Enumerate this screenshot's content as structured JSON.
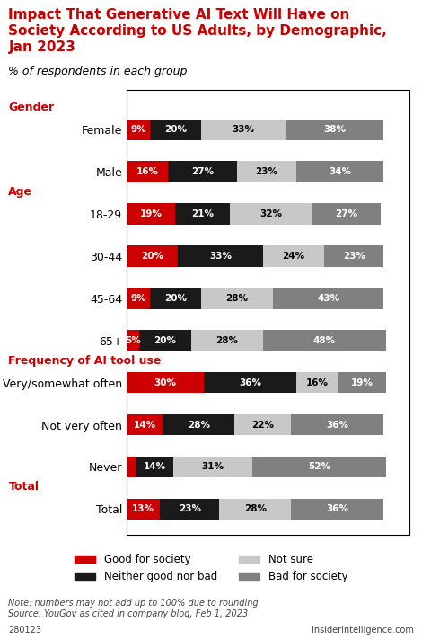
{
  "chart_data": {
    "type": "bar",
    "title": "Impact That Generative AI Text Will Have on\nSociety According to US Adults, by Demographic,\nJan 2023",
    "subtitle": "% of respondents in each group",
    "note": "Note: numbers may not add up to 100% due to rounding\nSource: YouGov as cited in company blog, Feb 1, 2023",
    "footer": [
      "280123",
      "InsiderIntelligence.com"
    ],
    "orientation": "horizontal",
    "stacked": true,
    "data_labels": true,
    "tick_labels": "y",
    "grid": false,
    "legend": "lower center",
    "xlim": [
      0,
      110
    ],
    "categories": [
      "Female",
      "Male",
      "18-29",
      "30-44",
      "45-64",
      "65+",
      "Very/somewhat often",
      "Not very often",
      "Never",
      "Total"
    ],
    "annotations": [
      {
        "text": "Gender",
        "category": "Female"
      },
      {
        "text": "Age",
        "category": "18-29"
      },
      {
        "text": "Frequency of AI tool use",
        "category": "Very/somewhat often"
      },
      {
        "text": "Total",
        "category": "Total"
      }
    ],
    "series": [
      {
        "name": "Good for society",
        "color": "#cc0000",
        "values": [
          9,
          16,
          19,
          20,
          9,
          5,
          30,
          14,
          4,
          13
        ],
        "value_labels": [
          "9%",
          "16%",
          "19%",
          "20%",
          "9%",
          "5%",
          "30%",
          "14%",
          null,
          "13%"
        ]
      },
      {
        "name": "Neither good nor bad",
        "color": "#1a1a1a",
        "values": [
          20,
          27,
          21,
          33,
          20,
          20,
          36,
          28,
          14,
          23
        ],
        "value_labels": [
          "20%",
          "27%",
          "21%",
          "33%",
          "20%",
          "20%",
          "36%",
          "28%",
          "14%",
          "23%"
        ]
      },
      {
        "name": "Not sure",
        "color": "#c8c8c8",
        "values": [
          33,
          23,
          32,
          24,
          28,
          28,
          16,
          22,
          31,
          28
        ],
        "value_labels": [
          "33%",
          "23%",
          "32%",
          "24%",
          "28%",
          "28%",
          "16%",
          "22%",
          "31%",
          "28%"
        ]
      },
      {
        "name": "Bad for society",
        "color": "#808080",
        "values": [
          38,
          34,
          27,
          23,
          43,
          48,
          19,
          36,
          52,
          36
        ],
        "value_labels": [
          "38%",
          "34%",
          "27%",
          "23%",
          "43%",
          "48%",
          "19%",
          "36%",
          "52%",
          "36%"
        ]
      }
    ]
  }
}
